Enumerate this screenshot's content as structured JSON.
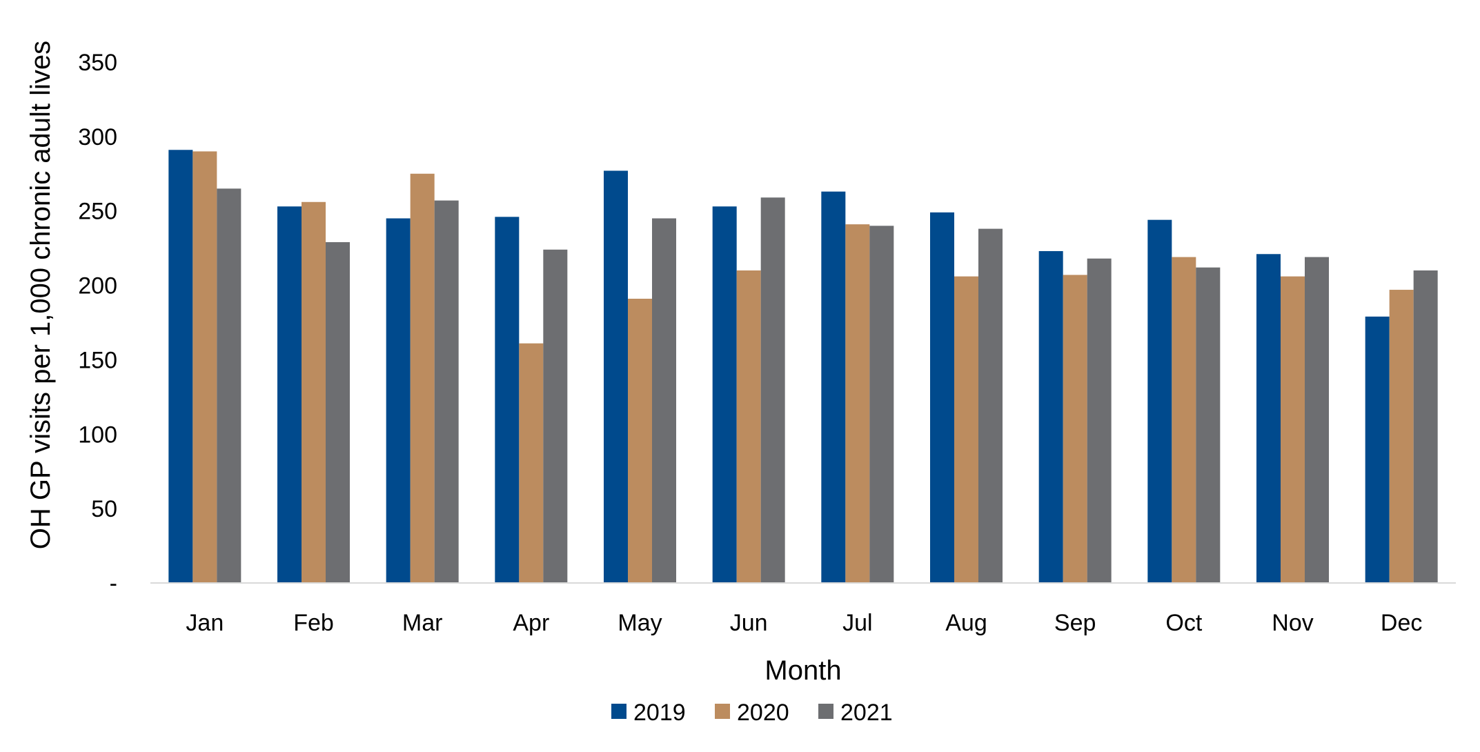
{
  "chart_data": {
    "type": "bar",
    "xlabel": "Month",
    "ylabel": "OH GP visits per 1,000 chronic adult lives",
    "ylim": [
      0,
      350
    ],
    "yticks": [
      0,
      50,
      100,
      150,
      200,
      250,
      300,
      350
    ],
    "ytick_labels": [
      "-",
      "50",
      "100",
      "150",
      "200",
      "250",
      "300",
      "350"
    ],
    "grid": false,
    "legend_position": "bottom-center",
    "categories": [
      "Jan",
      "Feb",
      "Mar",
      "Apr",
      "May",
      "Jun",
      "Jul",
      "Aug",
      "Sep",
      "Oct",
      "Nov",
      "Dec"
    ],
    "series": [
      {
        "name": "2019",
        "color": "#004A8D",
        "values": [
          291,
          253,
          245,
          246,
          277,
          253,
          263,
          249,
          223,
          244,
          221,
          179
        ]
      },
      {
        "name": "2020",
        "color": "#BC8C5F",
        "values": [
          290,
          256,
          275,
          161,
          191,
          210,
          241,
          206,
          207,
          219,
          206,
          197
        ]
      },
      {
        "name": "2021",
        "color": "#6D6E71",
        "values": [
          265,
          229,
          257,
          224,
          245,
          259,
          240,
          238,
          218,
          212,
          219,
          210
        ]
      }
    ]
  }
}
